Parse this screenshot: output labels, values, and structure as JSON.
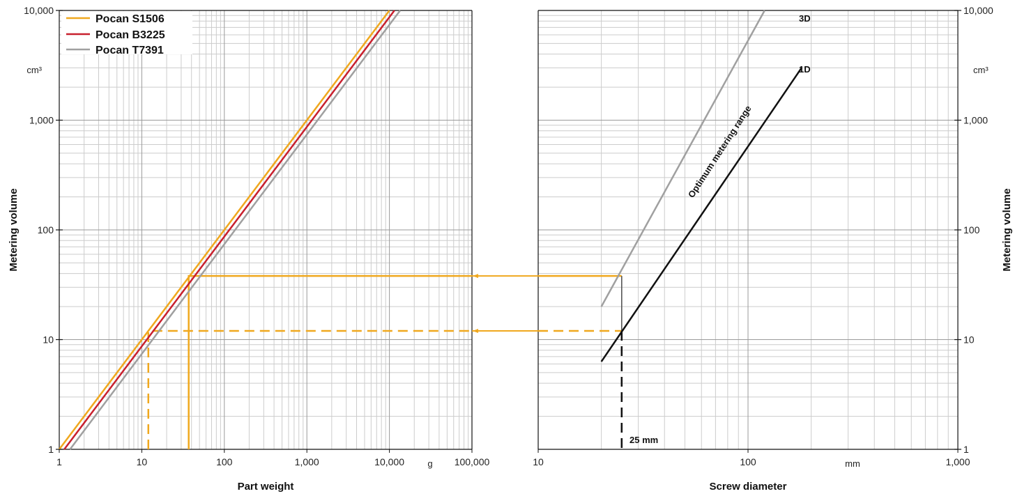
{
  "chart_data": [
    {
      "type": "line",
      "id": "left",
      "xlabel": "Part weight",
      "ylabel": "Metering volume",
      "x_unit": "g",
      "y_unit": "cm³",
      "x_scale": "log",
      "y_scale": "log",
      "xlim": [
        1,
        100000
      ],
      "ylim": [
        1,
        10000
      ],
      "x_ticks": [
        {
          "value": 1,
          "label": "1"
        },
        {
          "value": 10,
          "label": "10"
        },
        {
          "value": 100,
          "label": "100"
        },
        {
          "value": 1000,
          "label": "1,000"
        },
        {
          "value": 10000,
          "label": "10,000"
        },
        {
          "value": 100000,
          "label": "100,000"
        }
      ],
      "y_ticks": [
        {
          "value": 1,
          "label": "1"
        },
        {
          "value": 10,
          "label": "10"
        },
        {
          "value": 100,
          "label": "100"
        },
        {
          "value": 1000,
          "label": "1,000"
        },
        {
          "value": 10000,
          "label": "10,000"
        }
      ],
      "grid": true,
      "legend_position": "top-left",
      "series": [
        {
          "name": "Pocan S1506",
          "color": "#f0a81e",
          "x": [
            1,
            10000
          ],
          "y": [
            1,
            10000
          ]
        },
        {
          "name": "Pocan B3225",
          "color": "#c8202e",
          "x": [
            1.15,
            11500
          ],
          "y": [
            1,
            10000
          ]
        },
        {
          "name": "Pocan T7391",
          "color": "#a0a0a0",
          "x": [
            1.35,
            13500
          ],
          "y": [
            1,
            10000
          ]
        }
      ],
      "guides": [
        {
          "style": "solid",
          "color": "#f0a81e",
          "points": [
            [
              37,
              1
            ],
            [
              37,
              38
            ],
            [
              100000,
              38
            ]
          ]
        },
        {
          "style": "dashed",
          "color": "#f0a81e",
          "points": [
            [
              12,
              1
            ],
            [
              12,
              12
            ],
            [
              100000,
              12
            ]
          ]
        }
      ]
    },
    {
      "type": "line",
      "id": "right",
      "xlabel": "Screw diameter",
      "ylabel": "Metering volume",
      "x_unit": "mm",
      "y_unit": "cm³",
      "x_scale": "log",
      "y_scale": "log",
      "xlim": [
        10,
        1000
      ],
      "ylim": [
        1,
        10000
      ],
      "x_ticks": [
        {
          "value": 10,
          "label": "10"
        },
        {
          "value": 100,
          "label": "100"
        },
        {
          "value": 1000,
          "label": "1,000"
        }
      ],
      "y_ticks": [
        {
          "value": 1,
          "label": "1"
        },
        {
          "value": 10,
          "label": "10"
        },
        {
          "value": 100,
          "label": "100"
        },
        {
          "value": 1000,
          "label": "1,000"
        },
        {
          "value": 10000,
          "label": "10,000"
        }
      ],
      "grid": true,
      "series": [
        {
          "name": "3D",
          "color": "#a0a0a0",
          "x": [
            20,
            120
          ],
          "y": [
            20,
            10000
          ]
        },
        {
          "name": "1D",
          "color": "#111111",
          "x": [
            20,
            180
          ],
          "y": [
            6.3,
            3000
          ]
        }
      ],
      "guides": [
        {
          "style": "solid",
          "color": "#f0a81e",
          "points": [
            [
              10,
              38
            ],
            [
              25,
              38
            ]
          ]
        },
        {
          "style": "dashed",
          "color": "#f0a81e",
          "points": [
            [
              10,
              12
            ],
            [
              25,
              12
            ]
          ]
        },
        {
          "style": "solid",
          "color": "#555555",
          "points": [
            [
              25,
              38
            ],
            [
              25,
              12
            ]
          ]
        },
        {
          "style": "dashed",
          "color": "#111111",
          "points": [
            [
              25,
              12
            ],
            [
              25,
              1
            ]
          ]
        }
      ],
      "annotations": [
        {
          "text": "Optimum metering range",
          "rotated": true
        },
        {
          "text": "25 mm"
        }
      ]
    }
  ]
}
